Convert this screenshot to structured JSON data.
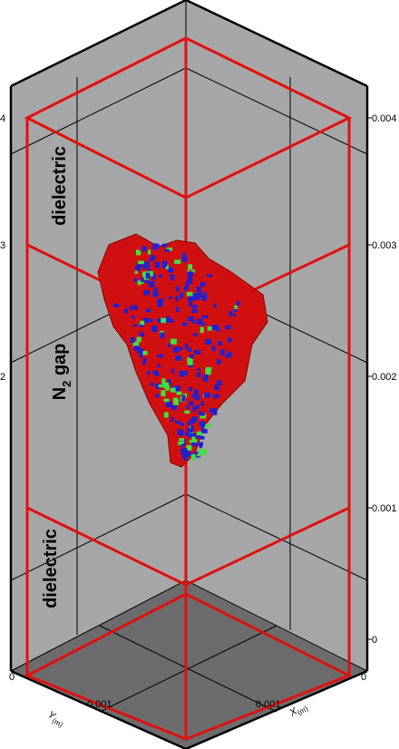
{
  "regions": {
    "top": "dielectric",
    "middle": {
      "main": "N",
      "sub": "2",
      "rest": " gap"
    },
    "bottom": "dielectric"
  },
  "z_axis": {
    "right_ticks": [
      "0.004",
      "0.003",
      "0.002",
      "0.001",
      "0"
    ],
    "left_ticks": [
      "4",
      "3",
      "2"
    ]
  },
  "bottom_axes": {
    "y_origin": "0",
    "x_origin": "0",
    "y_label": {
      "main": "Y",
      "sub": "(m)"
    },
    "y_tick": "0.001",
    "x_tick": "0.001",
    "x_label": {
      "main": "X",
      "sub": "(m)"
    }
  }
}
